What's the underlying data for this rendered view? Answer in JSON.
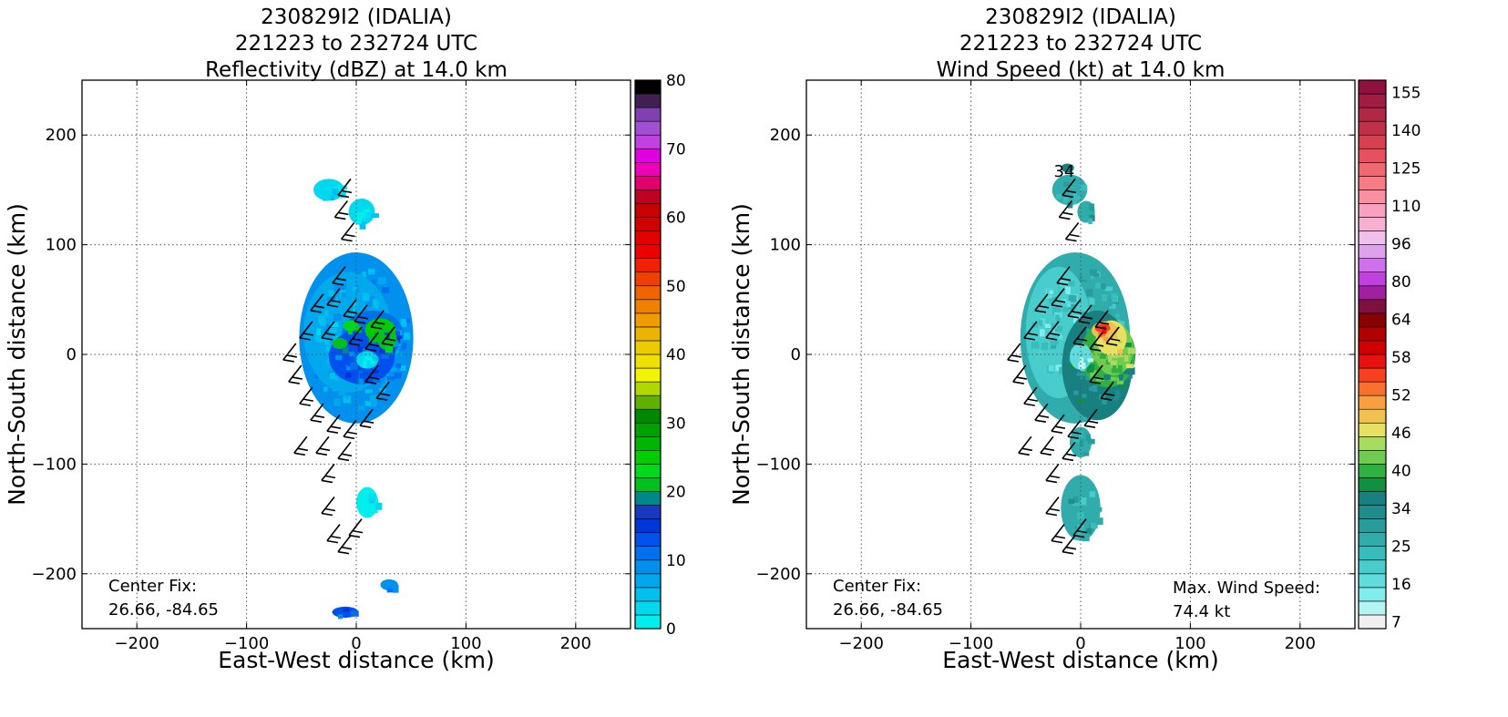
{
  "chart_data": [
    {
      "type": "heatmap",
      "title_lines": [
        "230829I2 (IDALIA)",
        "221223 to 232724 UTC",
        "Reflectivity (dBZ) at 14.0 km"
      ],
      "xlabel": "East-West distance (km)",
      "ylabel": "North-South distance (km)",
      "xlim": [
        -250,
        250
      ],
      "ylim": [
        -250,
        250
      ],
      "xticks": [
        -200,
        -100,
        0,
        100,
        200
      ],
      "yticks": [
        -200,
        -100,
        0,
        100,
        200
      ],
      "xtick_labels": [
        "−200",
        "−100",
        "0",
        "100",
        "200"
      ],
      "ytick_labels": [
        "−200",
        "−100",
        "0",
        "100",
        "200"
      ],
      "grid": true,
      "colorbar": {
        "ticks": [
          0,
          10,
          20,
          30,
          40,
          50,
          60,
          70,
          80
        ],
        "labels": [
          "0",
          "10",
          "20",
          "30",
          "40",
          "50",
          "60",
          "70",
          "80"
        ],
        "colors": [
          "#00eeee",
          "#00d8ee",
          "#00c0ee",
          "#00a8ee",
          "#0090ee",
          "#0070ee",
          "#0050ee",
          "#0036d8",
          "#1838c0",
          "#008888",
          "#00c020",
          "#00d820",
          "#00cc00",
          "#00b400",
          "#00a000",
          "#008800",
          "#60b000",
          "#b0d800",
          "#f4f400",
          "#f0e000",
          "#eccc00",
          "#ecb400",
          "#f09c00",
          "#f08000",
          "#f06400",
          "#f04000",
          "#f02000",
          "#ee0000",
          "#e00000",
          "#d00000",
          "#c80000",
          "#c00020",
          "#e0006c",
          "#ee00b8",
          "#e000e0",
          "#c040e0",
          "#a050d0",
          "#8040b0",
          "#402050",
          "#000000"
        ]
      },
      "annotations": [
        {
          "label": "Center Fix:",
          "value": "26.66, -84.65"
        }
      ],
      "echo_regions_km": [
        {
          "x": 0,
          "y": 15,
          "rx": 52,
          "ry": 78,
          "dbz": 8
        },
        {
          "x": -8,
          "y": 20,
          "rx": 40,
          "ry": 55,
          "dbz": 6
        },
        {
          "x": 15,
          "y": 18,
          "rx": 28,
          "ry": 22,
          "dbz": 11
        },
        {
          "x": 5,
          "y": -2,
          "rx": 30,
          "ry": 25,
          "dbz": 12
        },
        {
          "x": 22,
          "y": 22,
          "rx": 14,
          "ry": 11,
          "dbz": 24
        },
        {
          "x": 28,
          "y": 14,
          "rx": 9,
          "ry": 10,
          "dbz": 20
        },
        {
          "x": -15,
          "y": 10,
          "rx": 7,
          "ry": 5,
          "dbz": 21
        },
        {
          "x": -5,
          "y": 26,
          "rx": 7,
          "ry": 5,
          "dbz": 22
        },
        {
          "x": 10,
          "y": -5,
          "rx": 10,
          "ry": 8,
          "dbz": 2
        },
        {
          "x": -25,
          "y": 150,
          "rx": 14,
          "ry": 10,
          "dbz": 3
        },
        {
          "x": 5,
          "y": 130,
          "rx": 12,
          "ry": 12,
          "dbz": 2
        },
        {
          "x": 10,
          "y": -135,
          "rx": 10,
          "ry": 14,
          "dbz": 1
        },
        {
          "x": 30,
          "y": -210,
          "rx": 8,
          "ry": 5,
          "dbz": 8
        },
        {
          "x": -10,
          "y": -235,
          "rx": 12,
          "ry": 5,
          "dbz": 12
        }
      ]
    },
    {
      "type": "heatmap",
      "title_lines": [
        "230829I2 (IDALIA)",
        "221223 to 232724 UTC",
        "Wind Speed (kt) at 14.0 km"
      ],
      "xlabel": "East-West distance (km)",
      "ylabel": "North-South distance (km)",
      "xlim": [
        -250,
        250
      ],
      "ylim": [
        -250,
        250
      ],
      "xticks": [
        -200,
        -100,
        0,
        100,
        200
      ],
      "yticks": [
        -200,
        -100,
        0,
        100,
        200
      ],
      "xtick_labels": [
        "−200",
        "−100",
        "0",
        "100",
        "200"
      ],
      "ytick_labels": [
        "−200",
        "−100",
        "0",
        "100",
        "200"
      ],
      "grid": true,
      "colorbar": {
        "ticks": [
          7,
          16,
          25,
          34,
          40,
          46,
          52,
          58,
          64,
          80,
          96,
          110,
          125,
          140,
          155
        ],
        "labels": [
          "7",
          "16",
          "25",
          "34",
          "40",
          "46",
          "52",
          "58",
          "64",
          "80",
          "96",
          "110",
          "125",
          "140",
          "155"
        ],
        "colors": [
          "#f0f0f0",
          "#b4f4f4",
          "#80ecec",
          "#60dcdc",
          "#48cccc",
          "#38bcbc",
          "#30acac",
          "#289c9c",
          "#208c8c",
          "#188080",
          "#109040",
          "#30b040",
          "#70cc50",
          "#a8dc60",
          "#e8e060",
          "#f0c050",
          "#f8a040",
          "#f87030",
          "#f84020",
          "#e81010",
          "#d00000",
          "#b00000",
          "#880000",
          "#801040",
          "#a020a0",
          "#c040e0",
          "#d070ec",
          "#e0a0f0",
          "#f0c0ec",
          "#f8b0d0",
          "#f8a0c0",
          "#f890a0",
          "#f87c84",
          "#f06870",
          "#e85060",
          "#d84050",
          "#c03048",
          "#b02844",
          "#a01c40",
          "#901040"
        ]
      },
      "annotations": [
        {
          "label": "Center Fix:",
          "value": "26.66, -84.65"
        },
        {
          "label": "Max. Wind Speed:",
          "value": "74.4 kt"
        }
      ],
      "contour_labels": [
        {
          "x": -15,
          "y": 167,
          "text": "34"
        }
      ],
      "wind_regions_kt": [
        {
          "x": -5,
          "y": 15,
          "rx": 50,
          "ry": 78,
          "kt": 24
        },
        {
          "x": -20,
          "y": 20,
          "rx": 30,
          "ry": 60,
          "kt": 18
        },
        {
          "x": 15,
          "y": -10,
          "rx": 32,
          "ry": 50,
          "kt": 36
        },
        {
          "x": 25,
          "y": 0,
          "rx": 25,
          "ry": 30,
          "kt": 44
        },
        {
          "x": 30,
          "y": 5,
          "rx": 18,
          "ry": 24,
          "kt": 50
        },
        {
          "x": 28,
          "y": 15,
          "rx": 14,
          "ry": 16,
          "kt": 56
        },
        {
          "x": 22,
          "y": 22,
          "rx": 12,
          "ry": 8,
          "kt": 62
        },
        {
          "x": 20,
          "y": 24,
          "rx": 7,
          "ry": 4,
          "kt": 72
        },
        {
          "x": 0,
          "y": -2,
          "rx": 10,
          "ry": 12,
          "kt": 12
        },
        {
          "x": -10,
          "y": 150,
          "rx": 16,
          "ry": 14,
          "kt": 26
        },
        {
          "x": -12,
          "y": 170,
          "rx": 6,
          "ry": 4,
          "kt": 36
        },
        {
          "x": 5,
          "y": 130,
          "rx": 8,
          "ry": 10,
          "kt": 26
        },
        {
          "x": 0,
          "y": -140,
          "rx": 18,
          "ry": 30,
          "kt": 26
        },
        {
          "x": 0,
          "y": -80,
          "rx": 10,
          "ry": 14,
          "kt": 26
        }
      ]
    }
  ]
}
